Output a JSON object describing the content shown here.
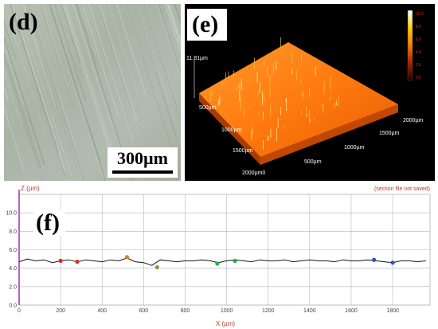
{
  "panel_d": {
    "letter": "(d)",
    "scale_bar": "300µm"
  },
  "panel_e": {
    "letter": "(e)",
    "z_label": "11.81µm",
    "axis_labels": [
      "500µm",
      "1000µm",
      "1500µm",
      "2000µm",
      "500µm",
      "1000µm",
      "1500µm",
      "2000µm0"
    ],
    "legend_ticks": [
      "10.0",
      "8.0",
      "6.0",
      "4.0",
      "2.0",
      "0.0"
    ],
    "colors": {
      "surface_bright": "#ff8a1a",
      "surface_dark": "#e25a00",
      "background": "#000000"
    }
  },
  "panel_f": {
    "letter": "(f)",
    "notice": "(section file not saved)",
    "chart_data": {
      "type": "line",
      "ylabel": "Z (µm)",
      "xlabel": "X (µm)",
      "xlim": [
        0,
        1980
      ],
      "ylim": [
        0,
        12
      ],
      "x_ticks": [
        "0",
        "200",
        "400",
        "600",
        "800",
        "1000",
        "1200",
        "1400",
        "1600",
        "1800"
      ],
      "y_ticks": [
        "0.0",
        "2.0",
        "4.0",
        "6.0",
        "8.0",
        "10.0"
      ],
      "grid": true,
      "series_color": "#111111",
      "x": [
        0,
        40,
        80,
        120,
        160,
        200,
        240,
        280,
        320,
        360,
        400,
        440,
        480,
        520,
        560,
        600,
        640,
        680,
        720,
        760,
        800,
        840,
        880,
        920,
        960,
        1000,
        1040,
        1080,
        1120,
        1160,
        1200,
        1240,
        1280,
        1320,
        1360,
        1400,
        1440,
        1480,
        1520,
        1560,
        1600,
        1640,
        1680,
        1720,
        1760,
        1800,
        1840,
        1880,
        1920,
        1960
      ],
      "y": [
        4.7,
        5.0,
        4.8,
        4.9,
        4.6,
        4.8,
        4.9,
        4.7,
        4.9,
        4.8,
        4.7,
        4.9,
        4.8,
        5.1,
        4.7,
        4.6,
        4.3,
        4.9,
        4.8,
        4.7,
        4.8,
        4.8,
        4.9,
        4.8,
        4.6,
        4.8,
        4.9,
        4.8,
        4.7,
        4.9,
        4.8,
        4.8,
        4.9,
        4.7,
        4.8,
        4.9,
        4.8,
        4.8,
        4.7,
        4.9,
        4.8,
        4.8,
        4.9,
        4.8,
        4.7,
        4.6,
        4.8,
        4.8,
        4.7,
        4.8
      ],
      "markers": [
        {
          "x": 200,
          "y": 4.8,
          "color": "#d03030"
        },
        {
          "x": 280,
          "y": 4.7,
          "color": "#d03030"
        },
        {
          "x": 520,
          "y": 5.2,
          "color": "#c8882a"
        },
        {
          "x": 665,
          "y": 4.1,
          "color": "#8a9a3a"
        },
        {
          "x": 955,
          "y": 4.5,
          "color": "#2aa84a"
        },
        {
          "x": 1040,
          "y": 4.8,
          "color": "#2aa84a"
        },
        {
          "x": 1710,
          "y": 4.9,
          "color": "#3050c8"
        },
        {
          "x": 1800,
          "y": 4.6,
          "color": "#3050c8"
        }
      ]
    }
  }
}
